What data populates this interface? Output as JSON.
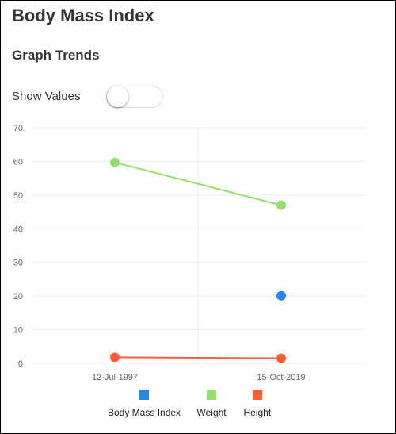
{
  "header": {
    "title": "Body Mass Index"
  },
  "section": {
    "title": "Graph Trends"
  },
  "controls": {
    "show_values_label": "Show Values",
    "show_values_on": false
  },
  "chart_data": {
    "type": "line",
    "title": "",
    "xlabel": "",
    "ylabel": "",
    "categories": [
      "12-Jul-1997",
      "15-Oct-2019"
    ],
    "ylim": [
      0,
      70
    ],
    "yticks": [
      0,
      10,
      20,
      30,
      40,
      50,
      60,
      70
    ],
    "grid": true,
    "legend_position": "bottom",
    "series": [
      {
        "name": "Body Mass Index",
        "color": "#2a85e8",
        "values": [
          null,
          20.1
        ]
      },
      {
        "name": "Weight",
        "color": "#95e06c",
        "values": [
          59.7,
          47
        ]
      },
      {
        "name": "Height",
        "color": "#ff5c38",
        "values": [
          1.8,
          1.5
        ]
      }
    ]
  }
}
